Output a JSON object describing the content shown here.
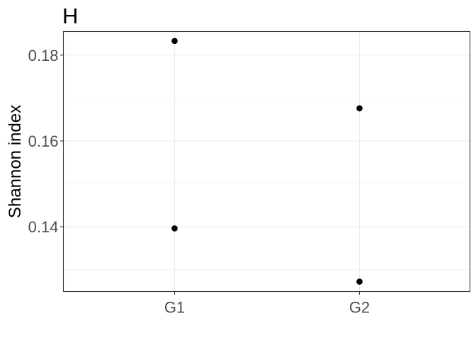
{
  "chart_data": {
    "type": "scatter",
    "title": "H",
    "xlabel": "",
    "ylabel": "Shannon index",
    "categories": [
      "G1",
      "G2"
    ],
    "points": [
      {
        "x": "G1",
        "y": 0.1833
      },
      {
        "x": "G1",
        "y": 0.1396
      },
      {
        "x": "G2",
        "y": 0.1676
      },
      {
        "x": "G2",
        "y": 0.1272
      }
    ],
    "ylim": [
      0.1249,
      0.1855
    ],
    "yticks": [
      0.14,
      0.16,
      0.18
    ],
    "ytick_labels": [
      "0.14",
      "0.16",
      "0.18"
    ],
    "grid": true,
    "legend": "none",
    "point_color": "#000000",
    "grid_color": "#ebebeb",
    "border_color": "#333333"
  }
}
